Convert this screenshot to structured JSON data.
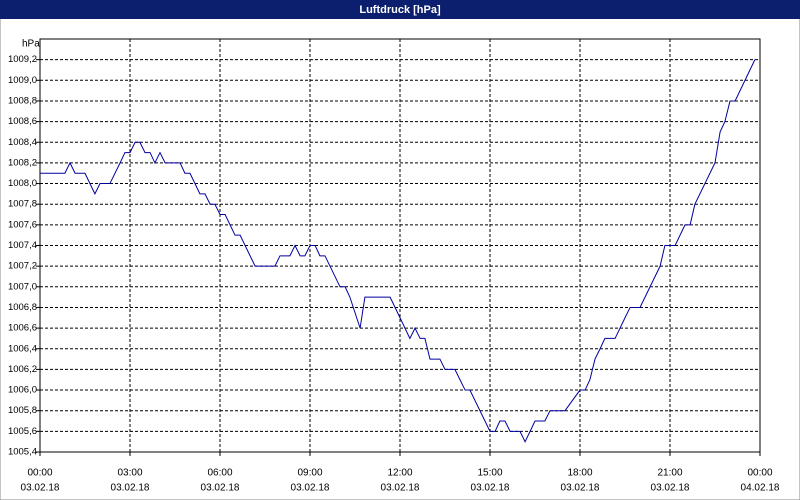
{
  "chart_data": {
    "type": "line",
    "title": "Luftdruck [hPa]",
    "y_label": "hPa",
    "x": [
      0,
      0.83,
      1,
      1.17,
      1.5,
      1.83,
      2,
      2.33,
      2.67,
      2.83,
      3,
      3.17,
      3.33,
      3.5,
      3.67,
      3.83,
      4,
      4.17,
      4.67,
      4.83,
      5,
      5.33,
      5.5,
      5.67,
      5.83,
      6,
      6.17,
      6.5,
      6.67,
      7.17,
      7.83,
      8,
      8.33,
      8.5,
      8.67,
      8.83,
      9,
      9.17,
      9.33,
      9.5,
      10,
      10.17,
      10.33,
      10.67,
      10.83,
      11.67,
      12,
      12.33,
      12.5,
      12.67,
      12.83,
      13,
      13.33,
      13.5,
      13.83,
      14.17,
      14.33,
      15,
      15.17,
      15.33,
      15.5,
      15.67,
      16,
      16.17,
      16.5,
      16.83,
      17,
      17.5,
      18,
      18.17,
      18.33,
      18.5,
      18.67,
      18.83,
      19.17,
      19.5,
      19.67,
      20,
      20.67,
      20.83,
      21.17,
      21.5,
      21.67,
      21.83,
      22.5,
      22.67,
      22.83,
      23,
      23.17,
      23.83
    ],
    "series": [
      {
        "name": "Luftdruck",
        "color": "#0000a0",
        "values": [
          1008.1,
          1008.1,
          1008.2,
          1008.1,
          1008.1,
          1007.9,
          1008.0,
          1008.0,
          1008.2,
          1008.3,
          1008.3,
          1008.4,
          1008.4,
          1008.3,
          1008.3,
          1008.2,
          1008.3,
          1008.2,
          1008.2,
          1008.1,
          1008.1,
          1007.9,
          1007.9,
          1007.8,
          1007.8,
          1007.7,
          1007.7,
          1007.5,
          1007.5,
          1007.2,
          1007.2,
          1007.3,
          1007.3,
          1007.4,
          1007.3,
          1007.3,
          1007.4,
          1007.4,
          1007.3,
          1007.3,
          1007.0,
          1007.0,
          1006.9,
          1006.6,
          1006.9,
          1006.9,
          1006.7,
          1006.5,
          1006.6,
          1006.5,
          1006.5,
          1006.3,
          1006.3,
          1006.2,
          1006.2,
          1006.0,
          1006.0,
          1005.6,
          1005.6,
          1005.7,
          1005.7,
          1005.6,
          1005.6,
          1005.5,
          1005.7,
          1005.7,
          1005.8,
          1005.8,
          1006.0,
          1006.0,
          1006.1,
          1006.3,
          1006.4,
          1006.5,
          1006.5,
          1006.7,
          1006.8,
          1006.8,
          1007.2,
          1007.4,
          1007.4,
          1007.6,
          1007.6,
          1007.8,
          1008.2,
          1008.5,
          1008.6,
          1008.8,
          1008.8,
          1009.2
        ]
      }
    ],
    "xlim": [
      0,
      24
    ],
    "xticks": [
      {
        "value": 0,
        "label": "00:00"
      },
      {
        "value": 3,
        "label": "03:00"
      },
      {
        "value": 6,
        "label": "06:00"
      },
      {
        "value": 9,
        "label": "09:00"
      },
      {
        "value": 12,
        "label": "12:00"
      },
      {
        "value": 15,
        "label": "15:00"
      },
      {
        "value": 18,
        "label": "18:00"
      },
      {
        "value": 21,
        "label": "21:00"
      },
      {
        "value": 24,
        "label": "00:00"
      }
    ],
    "xtick_dates": [
      "03.02.18",
      "03.02.18",
      "03.02.18",
      "03.02.18",
      "03.02.18",
      "03.02.18",
      "03.02.18",
      "03.02.18",
      "04.02.18"
    ],
    "ylim": [
      1005.4,
      1009.4
    ],
    "yticks": [
      {
        "value": 1005.4,
        "label": "1005,4"
      },
      {
        "value": 1005.6,
        "label": "1005,6"
      },
      {
        "value": 1005.8,
        "label": "1005,8"
      },
      {
        "value": 1006.0,
        "label": "1006,0"
      },
      {
        "value": 1006.2,
        "label": "1006,2"
      },
      {
        "value": 1006.4,
        "label": "1006,4"
      },
      {
        "value": 1006.6,
        "label": "1006,6"
      },
      {
        "value": 1006.8,
        "label": "1006,8"
      },
      {
        "value": 1007.0,
        "label": "1007,0"
      },
      {
        "value": 1007.2,
        "label": "1007,2"
      },
      {
        "value": 1007.4,
        "label": "1007,4"
      },
      {
        "value": 1007.6,
        "label": "1007,6"
      },
      {
        "value": 1007.8,
        "label": "1007,8"
      },
      {
        "value": 1008.0,
        "label": "1008,0"
      },
      {
        "value": 1008.2,
        "label": "1008,2"
      },
      {
        "value": 1008.4,
        "label": "1008,4"
      },
      {
        "value": 1008.6,
        "label": "1008,6"
      },
      {
        "value": 1008.8,
        "label": "1008,8"
      },
      {
        "value": 1009.0,
        "label": "1009,0"
      },
      {
        "value": 1009.2,
        "label": "1009,2"
      }
    ],
    "grid": true
  }
}
